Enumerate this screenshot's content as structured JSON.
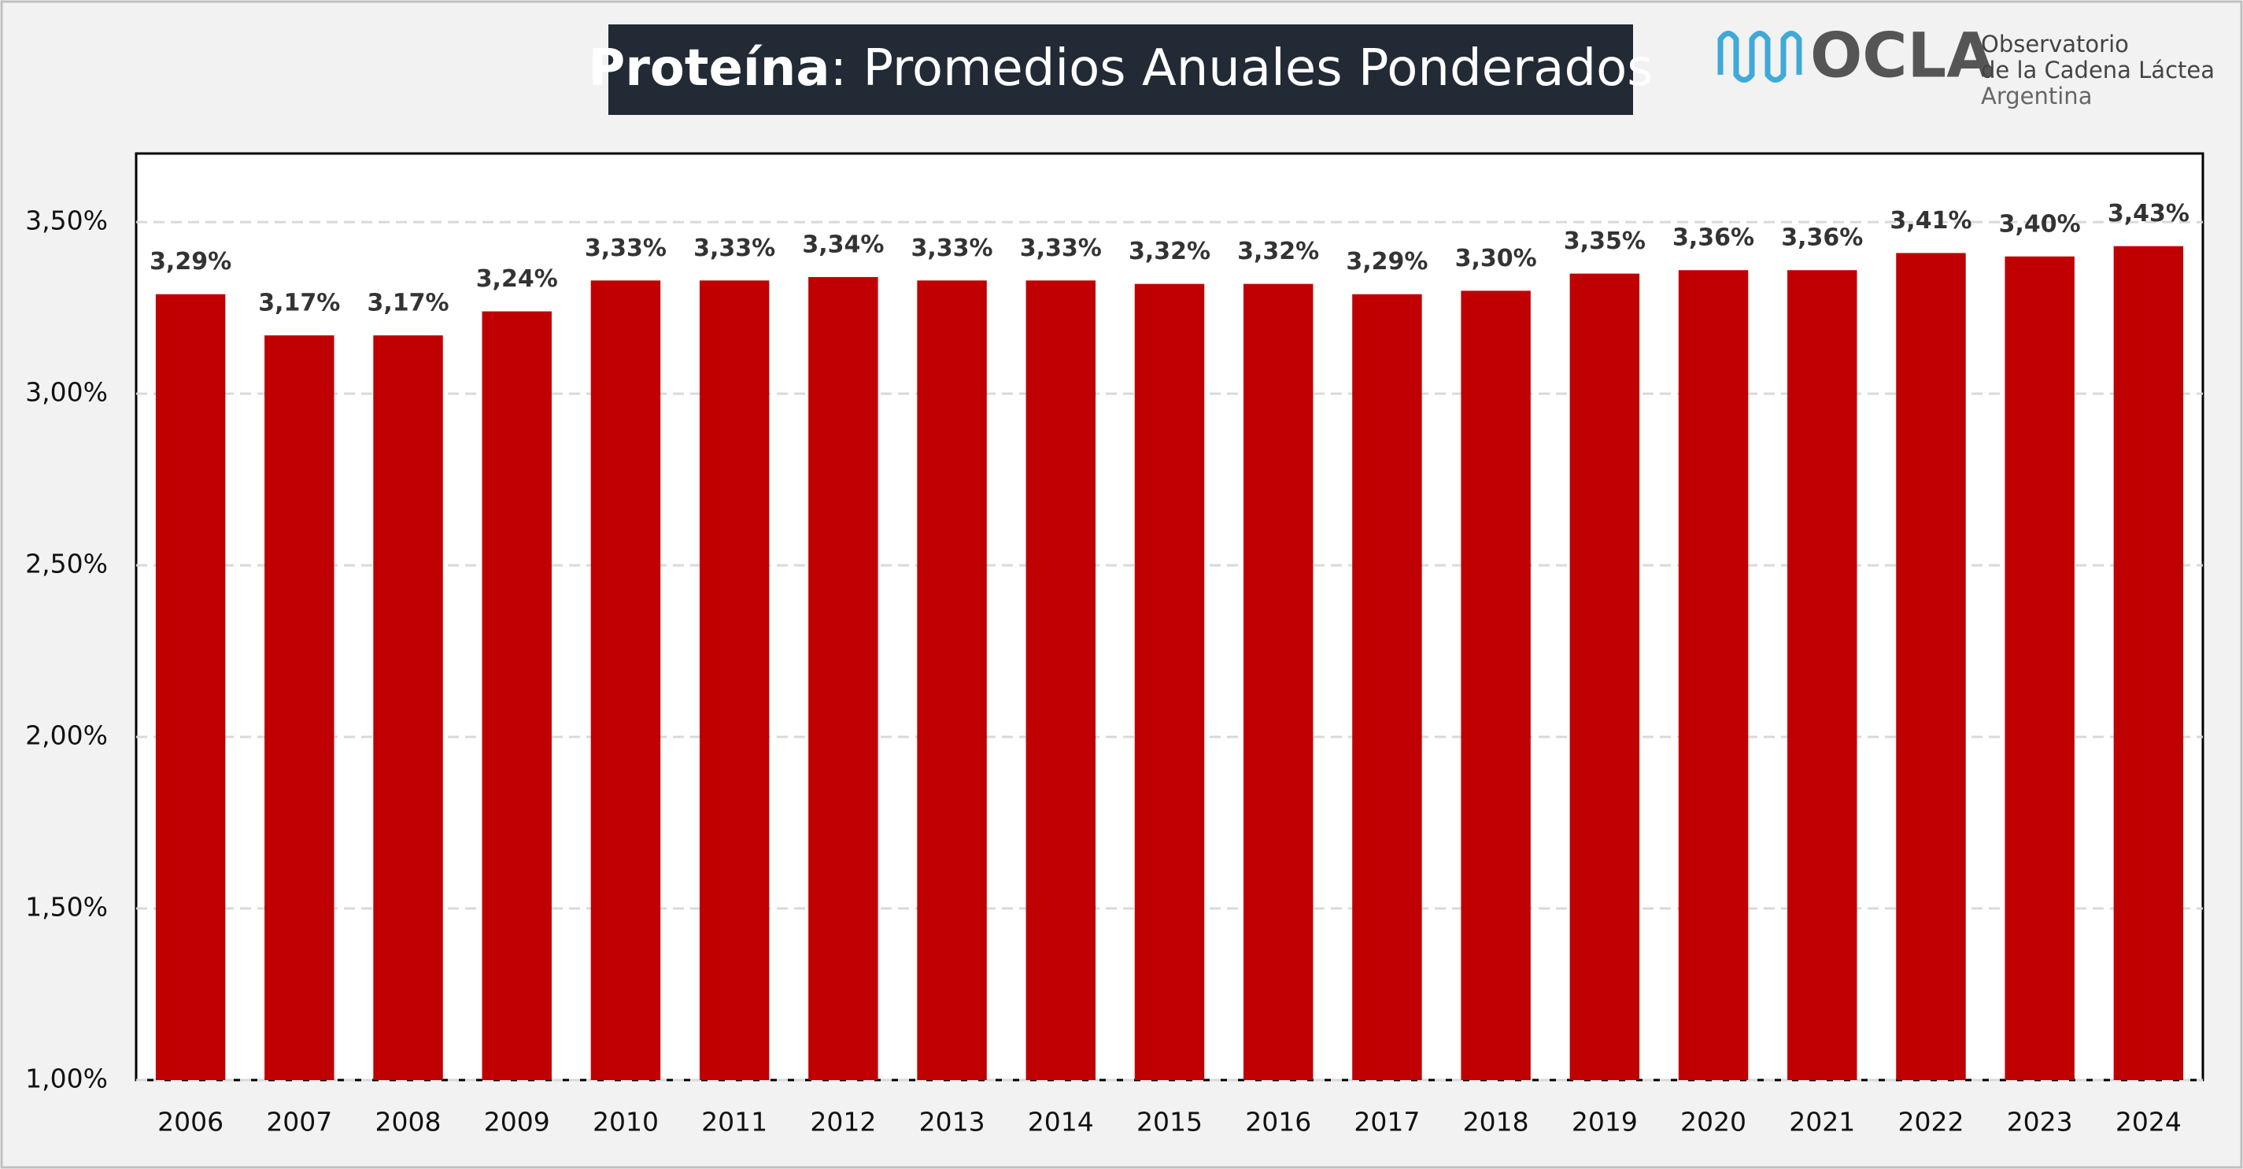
{
  "chart_data": {
    "type": "bar",
    "title_bold": "Proteína",
    "title_rest": ": Promedios Anuales Ponderados",
    "logo": {
      "name": "OCLA",
      "line1": "Observatorio",
      "line2": "de la Cadena Láctea",
      "line3": "Argentina"
    },
    "categories": [
      "2006",
      "2007",
      "2008",
      "2009",
      "2010",
      "2011",
      "2012",
      "2013",
      "2014",
      "2015",
      "2016",
      "2017",
      "2018",
      "2019",
      "2020",
      "2021",
      "2022",
      "2023",
      "2024"
    ],
    "values": [
      3.29,
      3.17,
      3.17,
      3.24,
      3.33,
      3.33,
      3.34,
      3.33,
      3.33,
      3.32,
      3.32,
      3.29,
      3.3,
      3.35,
      3.36,
      3.36,
      3.41,
      3.4,
      3.43
    ],
    "value_labels": [
      "3,29%",
      "3,17%",
      "3,17%",
      "3,24%",
      "3,33%",
      "3,33%",
      "3,34%",
      "3,33%",
      "3,33%",
      "3,32%",
      "3,32%",
      "3,29%",
      "3,30%",
      "3,35%",
      "3,36%",
      "3,36%",
      "3,41%",
      "3,40%",
      "3,43%"
    ],
    "color": "#c00000",
    "ylim": [
      1.0,
      3.7
    ],
    "yticks": [
      {
        "value": 1.0,
        "label": "1,00%"
      },
      {
        "value": 1.5,
        "label": "1,50%"
      },
      {
        "value": 2.0,
        "label": "2,00%"
      },
      {
        "value": 2.5,
        "label": "2,50%"
      },
      {
        "value": 3.0,
        "label": "3,00%"
      },
      {
        "value": 3.5,
        "label": "3,50%"
      }
    ],
    "grid": true
  }
}
